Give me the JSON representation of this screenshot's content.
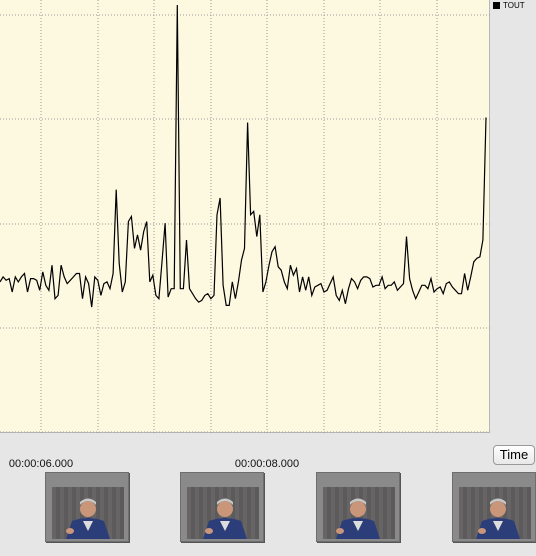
{
  "legend": {
    "label": "TOUT",
    "color": "#000000"
  },
  "timeline": {
    "tick_labels": [
      "00:00:06.000",
      "00:00:08.000"
    ],
    "time_button_label": "Time"
  },
  "thumbnails": [
    {
      "name": "frame-1"
    },
    {
      "name": "frame-2"
    },
    {
      "name": "frame-3"
    },
    {
      "name": "frame-4"
    }
  ],
  "colors": {
    "plot_bg": "#fdf8e0",
    "line": "#000000",
    "grid": "#9a9a9a",
    "app_bg": "#e6e6e6"
  },
  "chart_data": {
    "type": "line",
    "series": [
      {
        "name": "TOUT",
        "values": [
          90,
          93,
          91,
          92,
          84,
          93,
          90,
          93,
          95,
          84,
          92,
          92,
          91,
          85,
          96,
          88,
          85,
          100,
          80,
          82,
          100,
          93,
          89,
          91,
          93,
          95,
          95,
          80,
          93,
          89,
          75,
          93,
          91,
          82,
          89,
          90,
          86,
          95,
          145,
          101,
          84,
          90,
          126,
          129,
          110,
          118,
          109,
          120,
          126,
          90,
          94,
          82,
          80,
          102,
          125,
          81,
          86,
          86,
          255,
          86,
          86,
          115,
          86,
          83,
          80,
          78,
          79,
          82,
          83,
          80,
          82,
          130,
          140,
          88,
          76,
          76,
          90,
          80,
          90,
          103,
          110,
          185,
          130,
          132,
          117,
          130,
          84,
          90,
          100,
          108,
          111,
          99,
          97,
          90,
          86,
          100,
          94,
          98,
          84,
          93,
          85,
          93,
          82,
          87,
          88,
          89,
          84,
          85,
          89,
          93,
          82,
          79,
          85,
          77,
          86,
          92,
          90,
          86,
          91,
          93,
          93,
          92,
          87,
          88,
          88,
          93,
          86,
          88,
          88,
          90,
          85,
          87,
          89,
          117,
          92,
          85,
          80,
          84,
          88,
          88,
          86,
          92,
          84,
          86,
          87,
          83,
          89,
          90,
          87,
          85,
          83,
          83,
          95,
          85,
          93,
          102,
          104,
          105,
          115,
          188
        ],
        "color": "#000000"
      }
    ],
    "grid": true,
    "grid_style": "dotted",
    "legend_position": "top-right outside"
  }
}
